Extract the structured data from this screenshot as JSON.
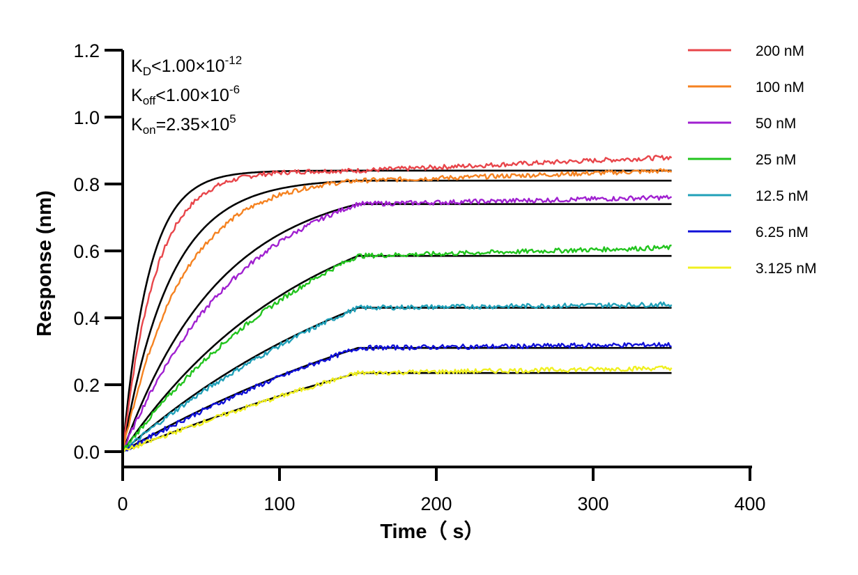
{
  "chart_data": {
    "type": "line",
    "xlabel": "Time（ s）",
    "ylabel": "Response (nm)",
    "xlim": [
      0,
      400
    ],
    "ylim": [
      0,
      1.2
    ],
    "x_ticks": [
      "0",
      "100",
      "200",
      "300",
      "400"
    ],
    "y_ticks": [
      "0.0",
      "0.2",
      "0.4",
      "0.6",
      "0.8",
      "1.0",
      "1.2"
    ],
    "grid": false,
    "legend_position": "top-right",
    "association_end": 150,
    "x_end": 350,
    "annotations": {
      "kd": {
        "base": "K",
        "sub": "D",
        "op": "<1.00×10",
        "exp": "-12"
      },
      "koff": {
        "base": "K",
        "sub": "off",
        "op": "<1.00×10",
        "exp": "-6"
      },
      "kon": {
        "base": "K",
        "sub": "on",
        "op": "=2.35×10",
        "exp": "5"
      }
    },
    "series": [
      {
        "name": "200 nM",
        "color": "#e8454a",
        "plateau": 0.84,
        "k": 0.06,
        "end_value": 0.88
      },
      {
        "name": "100 nM",
        "color": "#f58220",
        "plateau": 0.81,
        "k": 0.033,
        "end_value": 0.84
      },
      {
        "name": "50 nM",
        "color": "#a020d0",
        "plateau": 0.74,
        "k": 0.016,
        "end_value": 0.76
      },
      {
        "name": "25 nM",
        "color": "#22c41e",
        "plateau": 0.585,
        "k": 0.0085,
        "end_value": 0.61
      },
      {
        "name": "12.5 nM",
        "color": "#20a0b8",
        "plateau": 0.43,
        "k": 0.0055,
        "end_value": 0.44
      },
      {
        "name": "6.25 nM",
        "color": "#1010d8",
        "plateau": 0.31,
        "k": 0.004,
        "end_value": 0.32
      },
      {
        "name": "3.125 nM",
        "color": "#f0f020",
        "plateau": 0.235,
        "k": 0.0025,
        "end_value": 0.25
      }
    ]
  }
}
